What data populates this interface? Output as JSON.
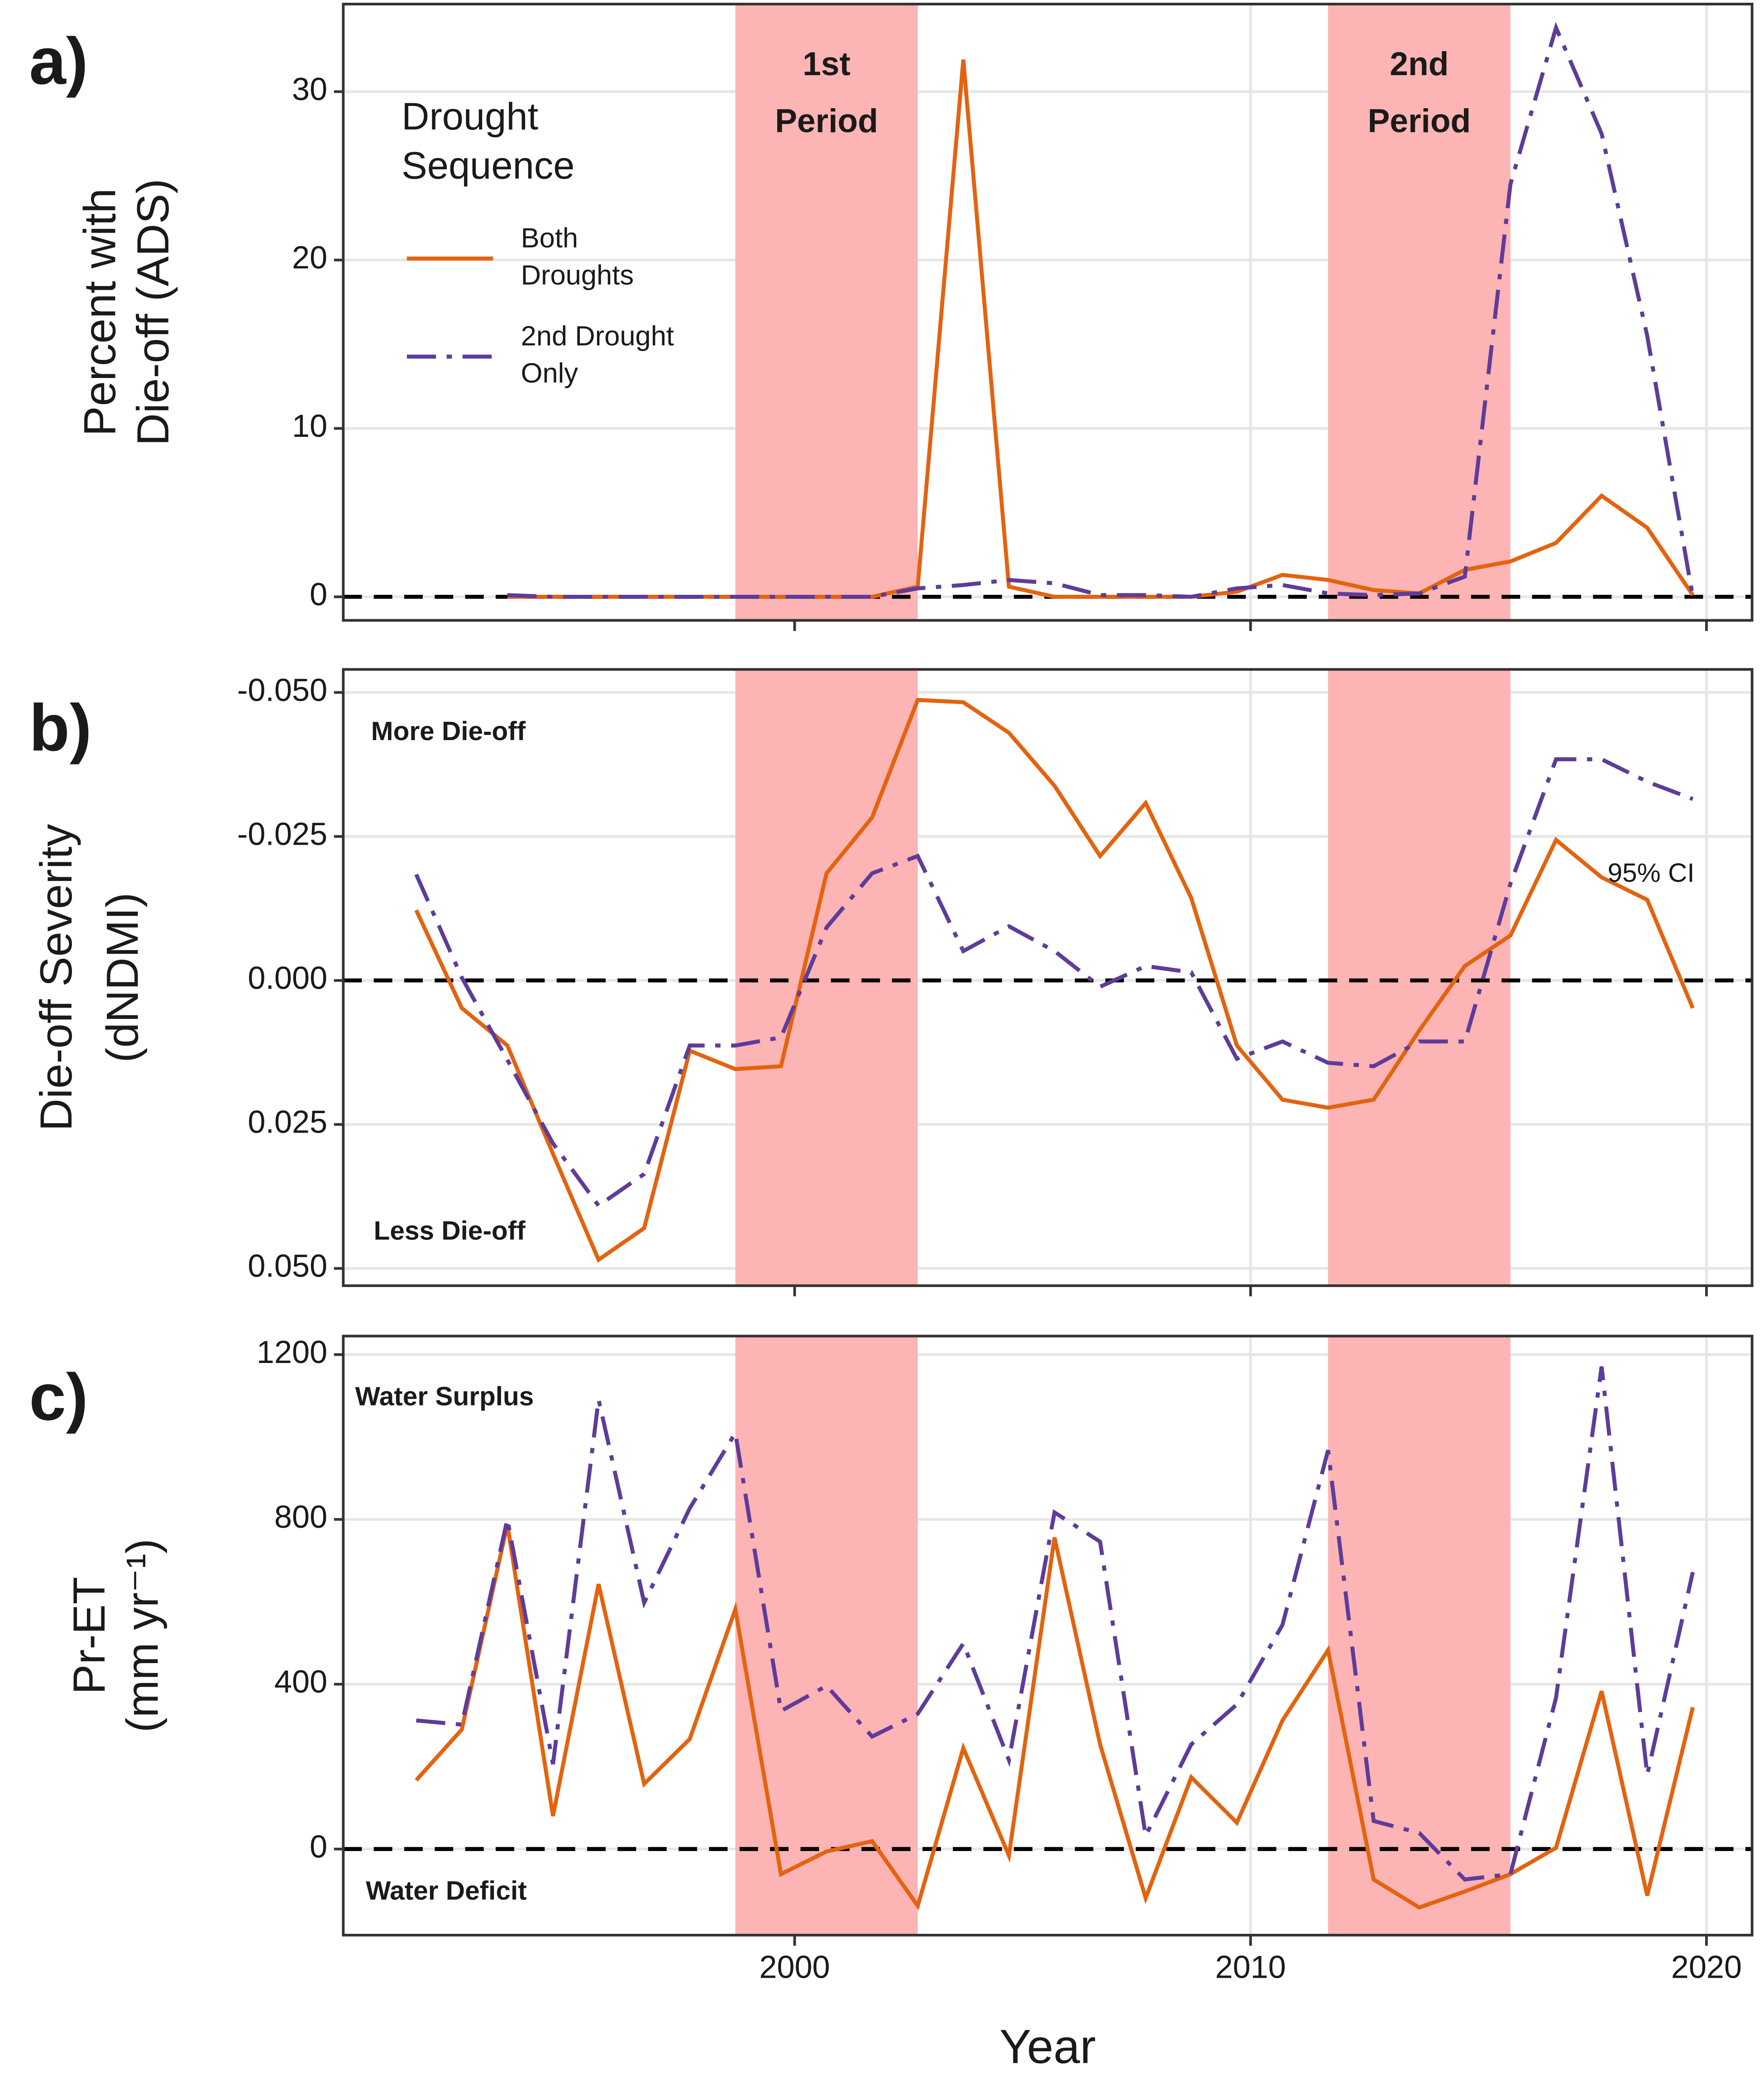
{
  "chart_data": [
    {
      "type": "line",
      "panel_label": "a)",
      "ylabel": [
        "Percent with",
        "Die-off (ADS)"
      ],
      "xlim": [
        1990.1,
        2021.0
      ],
      "xticks": [
        2000,
        2010,
        2020
      ],
      "ylim": [
        -1.4,
        35.2
      ],
      "yticks": [
        0,
        10,
        20,
        30
      ],
      "grid": true,
      "hline": 0,
      "legend_title": [
        "Drought",
        "Sequence"
      ],
      "periods": [
        {
          "label": [
            "1st",
            "Period"
          ],
          "range": [
            1998.7,
            2002.7
          ]
        },
        {
          "label": [
            "2nd",
            "Period"
          ],
          "range": [
            2011.7,
            2015.7
          ]
        }
      ],
      "x": [
        1993.7,
        1994.7,
        1995.7,
        1996.7,
        1997.7,
        1998.7,
        1999.7,
        2000.7,
        2001.7,
        2002.7,
        2003.7,
        2004.7,
        2005.7,
        2006.7,
        2007.7,
        2008.7,
        2009.7,
        2010.7,
        2011.7,
        2012.7,
        2013.7,
        2014.7,
        2015.7,
        2016.7,
        2017.7,
        2018.7,
        2019.7
      ],
      "series": [
        {
          "name": [
            "Both",
            "Droughts"
          ],
          "color": "#e3630f",
          "linestyle": "solid",
          "values": [
            0,
            0,
            0,
            0,
            0,
            0,
            0,
            0,
            0,
            0.6,
            31.9,
            0.6,
            0,
            0,
            0,
            0,
            0.3,
            1.3,
            1.0,
            0.4,
            0.2,
            1.6,
            2.1,
            3.2,
            6.0,
            4.1,
            0.1
          ]
        },
        {
          "name": [
            "2nd Drought",
            "Only"
          ],
          "color": "#5e3c99",
          "linestyle": "dashdot",
          "values": [
            0.1,
            0,
            0,
            0,
            0,
            0,
            0,
            0,
            0,
            0.5,
            0.7,
            1.0,
            0.8,
            0.1,
            0.1,
            0,
            0.5,
            0.7,
            0.2,
            0.1,
            0.2,
            1.2,
            24.5,
            33.8,
            27.5,
            15.5,
            0
          ]
        }
      ]
    },
    {
      "type": "line",
      "panel_label": "b)",
      "ylabel": [
        "Die-off Severity",
        "(dNDMI)"
      ],
      "xlim": [
        1990.1,
        2021.0
      ],
      "xticks": [
        2000,
        2010,
        2020
      ],
      "ylim": [
        0.053,
        -0.054
      ],
      "yticks": [
        {
          "value": -0.05,
          "label": "-0.050"
        },
        {
          "value": -0.025,
          "label": "-0.025"
        },
        {
          "value": 0,
          "label": "0.000"
        },
        {
          "value": 0.025,
          "label": "0.025"
        },
        {
          "value": 0.05,
          "label": "0.050"
        }
      ],
      "grid": true,
      "hline": 0,
      "annotations": [
        "More Die-off",
        "Less Die-off",
        "95% CI"
      ],
      "periods": [
        {
          "range": [
            1998.7,
            2002.7
          ]
        },
        {
          "range": [
            2011.7,
            2015.7
          ]
        }
      ],
      "x": [
        1991.7,
        1992.7,
        1993.7,
        1994.7,
        1995.7,
        1996.7,
        1997.7,
        1998.7,
        1999.7,
        2000.7,
        2001.7,
        2002.7,
        2003.7,
        2004.7,
        2005.7,
        2006.7,
        2007.7,
        2008.7,
        2009.7,
        2010.7,
        2011.7,
        2012.7,
        2013.7,
        2014.7,
        2015.7,
        2016.7,
        2017.7,
        2018.7,
        2019.7
      ],
      "series": [
        {
          "name": [
            "Both",
            "Droughts"
          ],
          "color": "#e3630f",
          "linestyle": "solid",
          "values": [
            -0.0122,
            0.0048,
            0.0113,
            0.0301,
            0.0485,
            0.043,
            0.0122,
            0.0154,
            0.0149,
            -0.0186,
            -0.0283,
            -0.0487,
            -0.0483,
            -0.043,
            -0.0338,
            -0.0216,
            -0.0308,
            -0.0143,
            0.0113,
            0.0207,
            0.0221,
            0.0207,
            0.0087,
            -0.0025,
            -0.0078,
            -0.0244,
            -0.0179,
            -0.014,
            0.0048
          ]
        },
        {
          "name": [
            "2nd Drought",
            "Only"
          ],
          "color": "#5e3c99",
          "linestyle": "dashdot",
          "values": [
            -0.0184,
            -0.0005,
            0.0138,
            0.0283,
            0.0391,
            0.0336,
            0.0113,
            0.0113,
            0.0099,
            -0.0092,
            -0.0186,
            -0.0216,
            -0.0051,
            -0.0094,
            -0.0051,
            0.0011,
            -0.0025,
            -0.0014,
            0.0136,
            0.0106,
            0.0143,
            0.0149,
            0.0106,
            0.0106,
            -0.0168,
            -0.0384,
            -0.0384,
            -0.0345,
            -0.0315
          ]
        }
      ]
    },
    {
      "type": "line",
      "panel_label": "c)",
      "ylabel": [
        "Pr-ET",
        "(mm yr⁻¹)"
      ],
      "xlabel": "Year",
      "xlim": [
        1990.1,
        2021.0
      ],
      "xticks": [
        2000,
        2010,
        2020
      ],
      "ylim": [
        -209,
        1245
      ],
      "yticks": [
        0,
        400,
        800,
        1200
      ],
      "grid": true,
      "hline": 0,
      "annotations": [
        "Water Surplus",
        "Water Deficit"
      ],
      "periods": [
        {
          "range": [
            1998.7,
            2002.7
          ]
        },
        {
          "range": [
            2011.7,
            2015.7
          ]
        }
      ],
      "x": [
        1991.7,
        1992.7,
        1993.7,
        1994.7,
        1995.7,
        1996.7,
        1997.7,
        1998.7,
        1999.7,
        2000.7,
        2001.7,
        2002.7,
        2003.7,
        2004.7,
        2005.7,
        2006.7,
        2007.7,
        2008.7,
        2009.7,
        2010.7,
        2011.7,
        2012.7,
        2013.7,
        2014.7,
        2015.7,
        2016.7,
        2017.7,
        2018.7,
        2019.7
      ],
      "series": [
        {
          "name": [
            "Both",
            "Droughts"
          ],
          "color": "#e3630f",
          "linestyle": "solid",
          "values": [
            167,
            290,
            788,
            80,
            643,
            158,
            267,
            582,
            -61,
            -6,
            19,
            -138,
            245,
            -16,
            756,
            254,
            -119,
            174,
            64,
            312,
            483,
            -74,
            -142,
            -103,
            -61,
            3,
            383,
            -113,
            344
          ]
        },
        {
          "name": [
            "2nd Drought",
            "Only"
          ],
          "color": "#5e3c99",
          "linestyle": "dashdot",
          "values": [
            312,
            302,
            801,
            206,
            1091,
            598,
            827,
            1010,
            335,
            396,
            273,
            328,
            499,
            216,
            817,
            746,
            32,
            254,
            351,
            544,
            968,
            68,
            39,
            -74,
            -61,
            367,
            1171,
            180,
            672
          ]
        }
      ]
    }
  ]
}
